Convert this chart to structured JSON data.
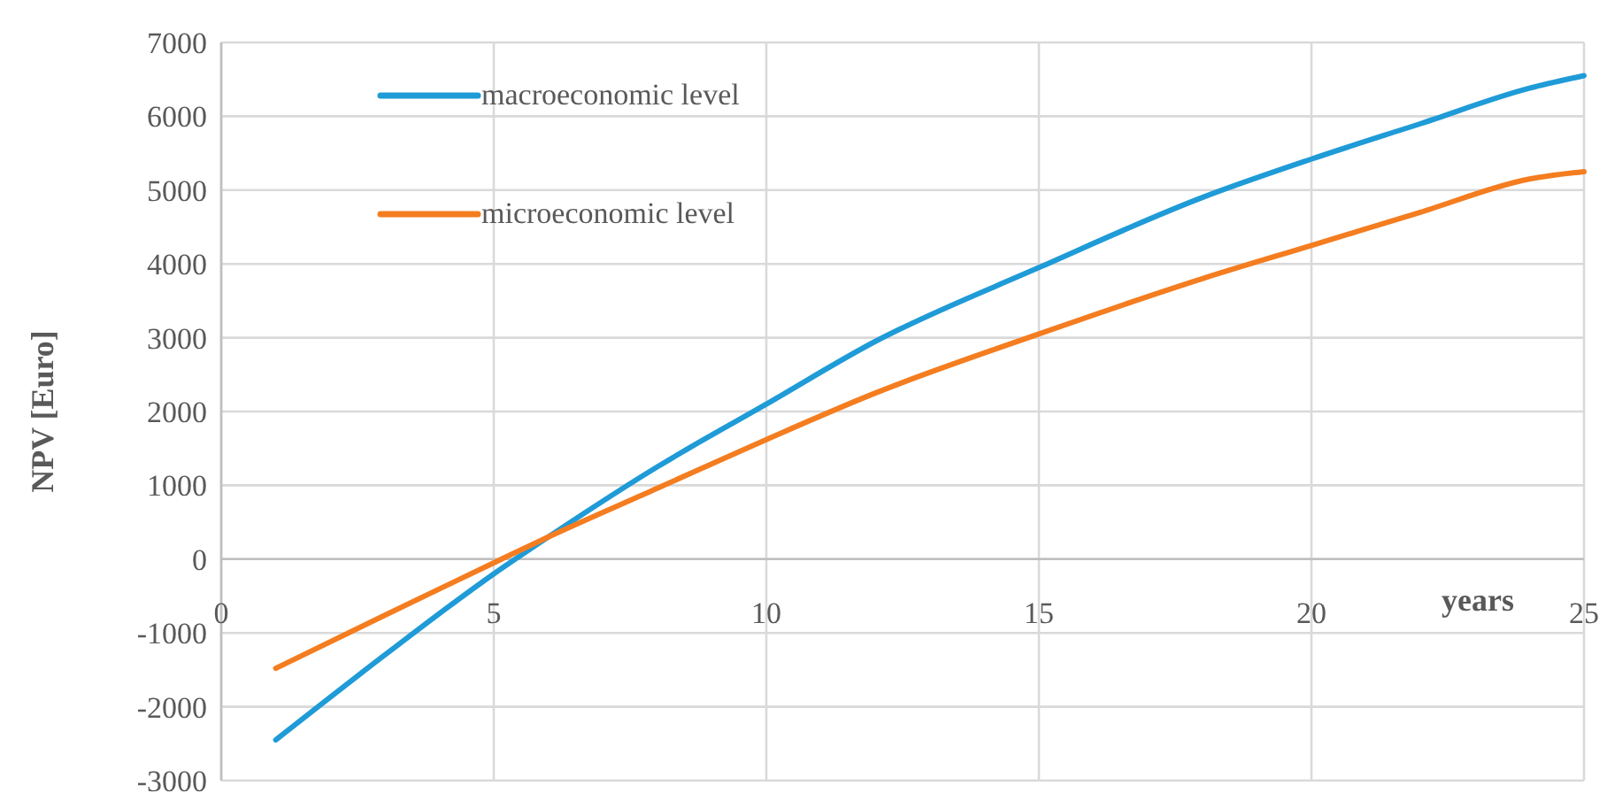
{
  "chart_data": {
    "type": "line",
    "xlabel": "years",
    "ylabel": "NPV [Euro]",
    "xlim": [
      0,
      25
    ],
    "xticks": [
      0,
      5,
      10,
      15,
      20,
      25
    ],
    "ylim": [
      -3000,
      7000
    ],
    "yticks": [
      -3000,
      -2000,
      -1000,
      0,
      1000,
      2000,
      3000,
      4000,
      5000,
      6000,
      7000
    ],
    "grid": true,
    "legend": "top left",
    "marker": "none",
    "line_style": "solid",
    "series": [
      {
        "name": "macroeconomic level",
        "color": "#1f9bd7",
        "x": [
          1,
          3,
          5,
          6,
          8,
          10,
          12,
          15,
          18,
          20,
          22,
          24,
          25
        ],
        "values": [
          -2450,
          -1300,
          -200,
          300,
          1250,
          2100,
          2950,
          3950,
          4900,
          5420,
          5900,
          6380,
          6550
        ]
      },
      {
        "name": "microeconomic level",
        "color": "#f47d20",
        "x": [
          1,
          3,
          5,
          6,
          8,
          10,
          12,
          15,
          18,
          20,
          22,
          24,
          25
        ],
        "values": [
          -1480,
          -760,
          -50,
          300,
          960,
          1620,
          2250,
          3050,
          3800,
          4250,
          4700,
          5150,
          5250
        ]
      }
    ]
  }
}
